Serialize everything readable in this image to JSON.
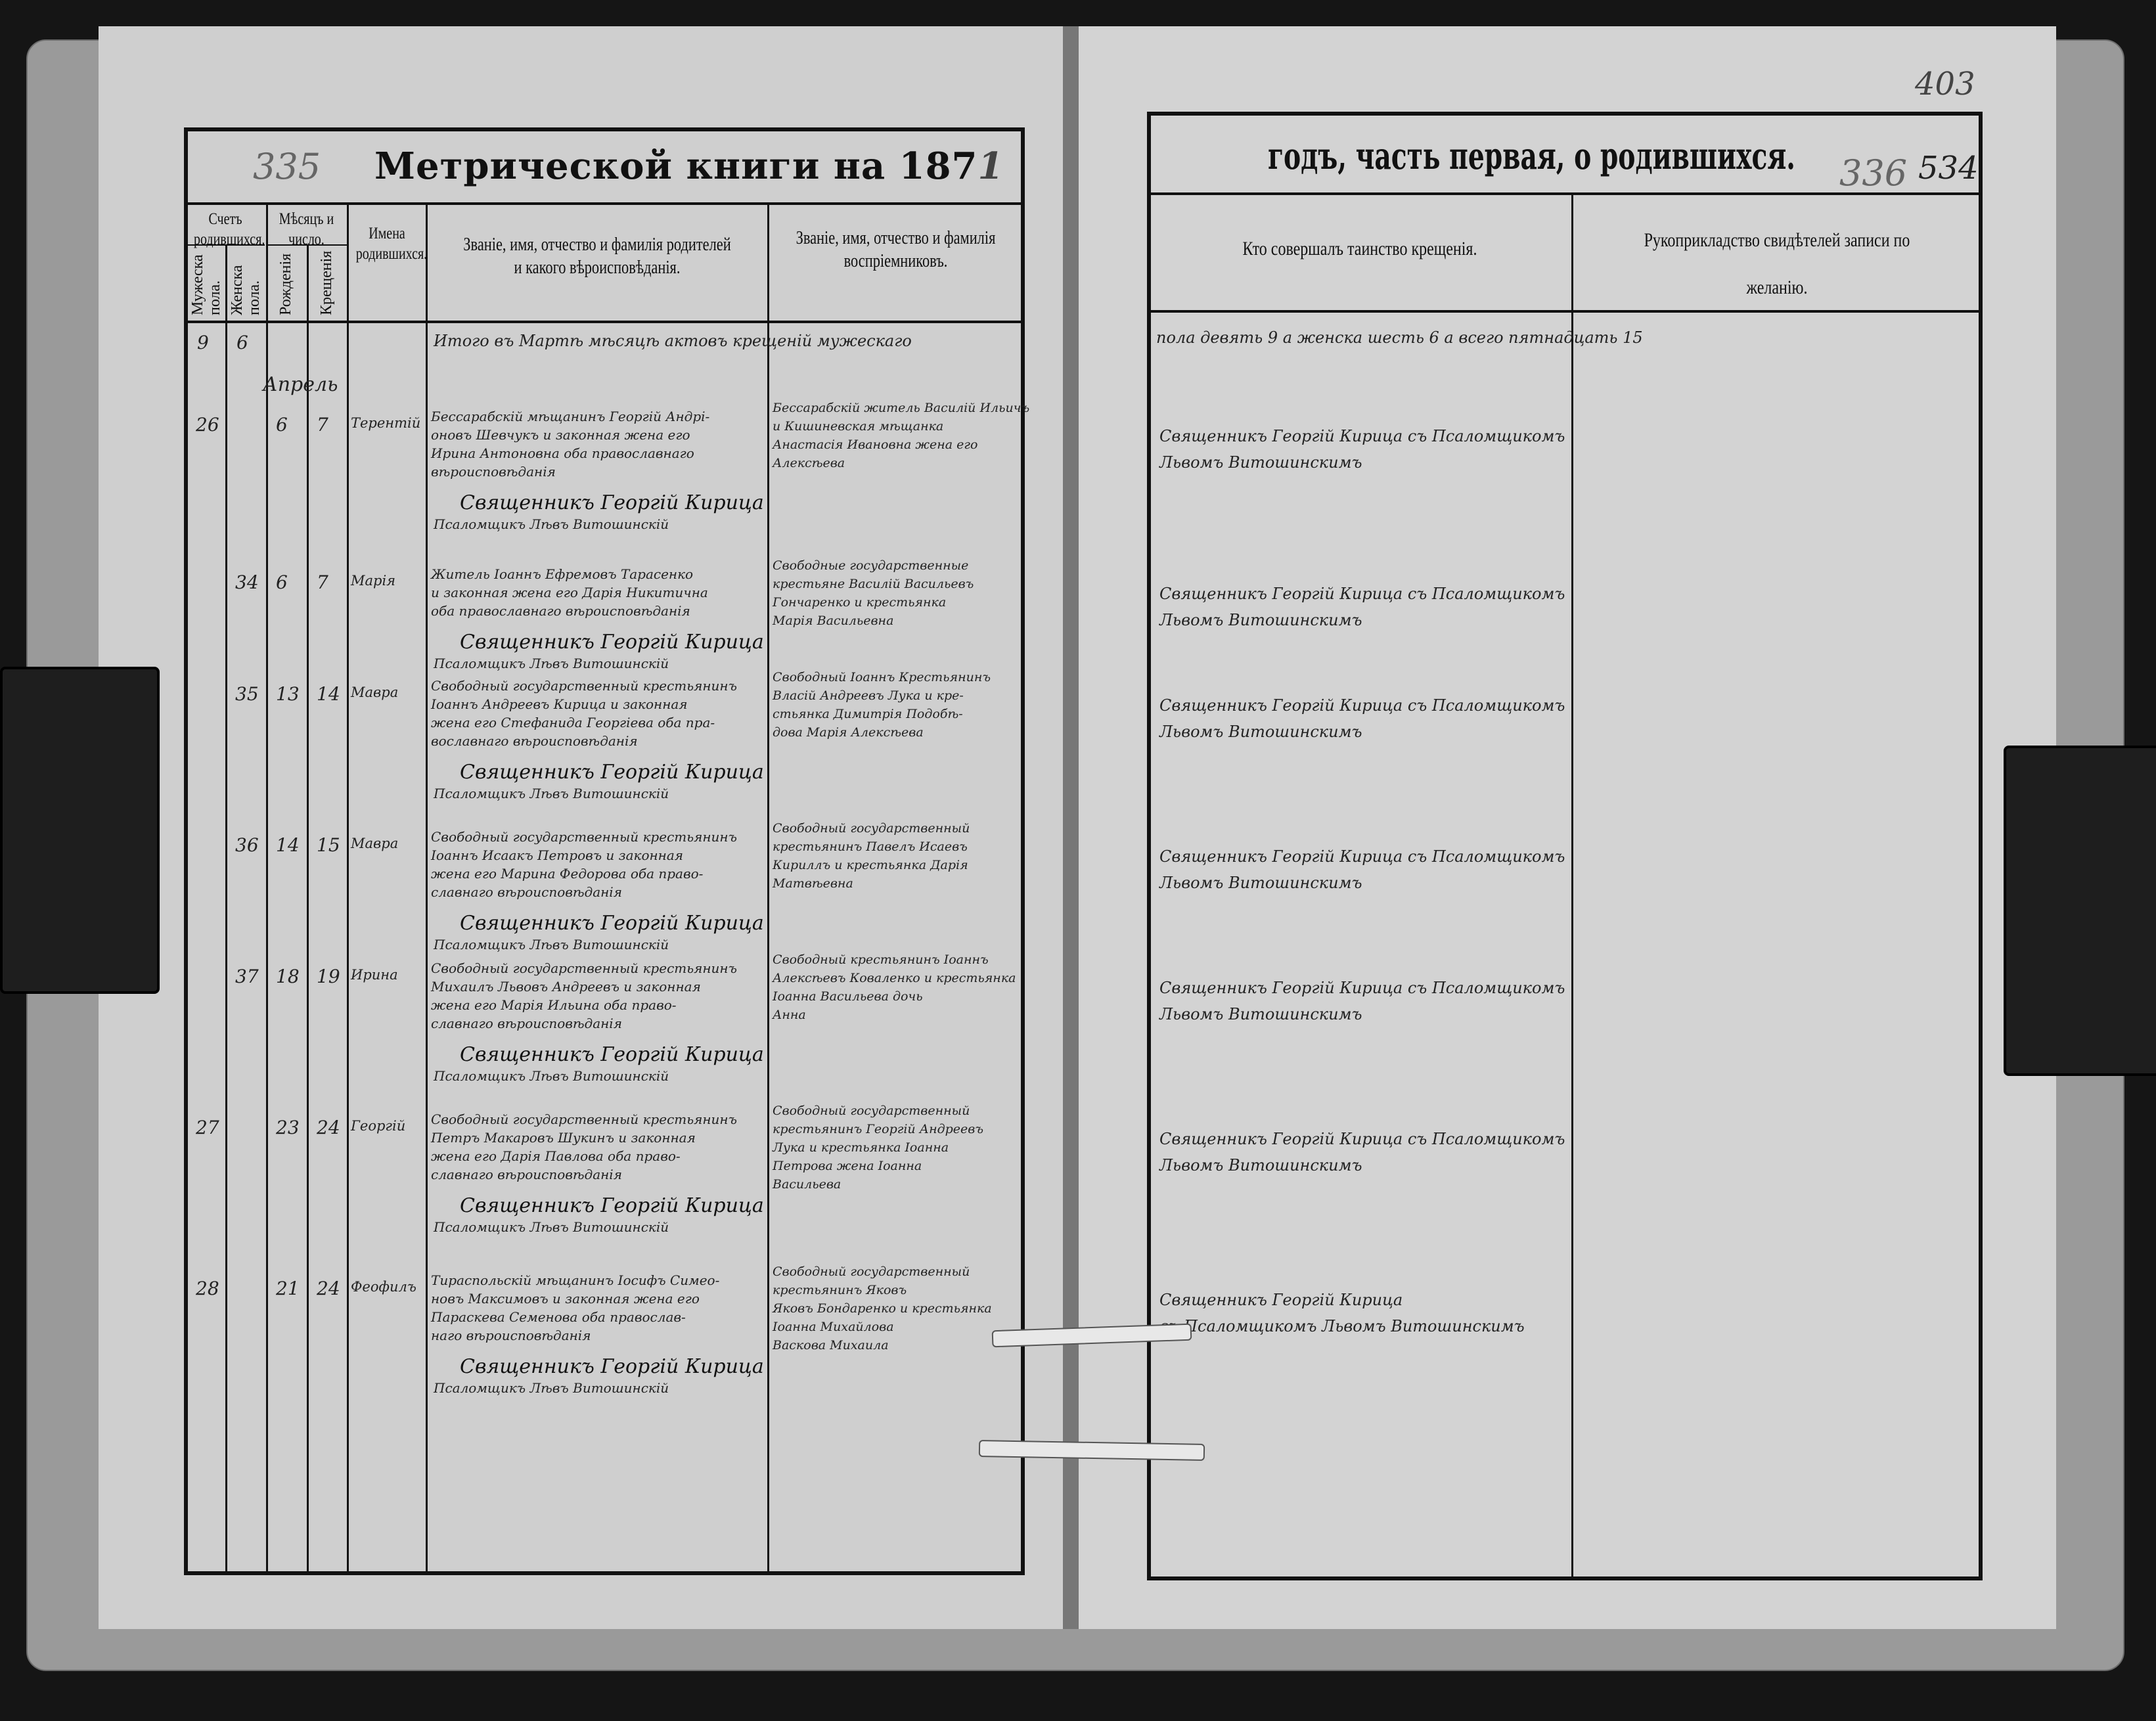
{
  "left_page": {
    "title": "Метрической книги на 187",
    "title_year_handwritten": "1",
    "page_number_pencil": "335",
    "headers": {
      "count_group": "Счетъ родившихся.",
      "count_male": "Мужеска пола.",
      "count_female": "Женска пола.",
      "date_group": "Мѣсяцъ и число.",
      "date_birth": "Рожденія",
      "date_baptism": "Крещенія",
      "names": "Имена родившихся.",
      "parents": "Званіе, имя, отчество и фамилія родителей и какого вѣроисповѣданія.",
      "godparents": "Званіе, имя, отчество и фамилія воспріемниковъ."
    },
    "carryover": {
      "male": "9",
      "female": "6",
      "note": "Итого въ Мартѣ мѣсяцѣ актовъ крещеній мужескаго"
    },
    "month": "Апрель",
    "rows": [
      {
        "male": "26",
        "female": "",
        "birth": "6",
        "baptism": "7",
        "name": "Терентій",
        "parents": [
          "Бессарабскій мѣщанинъ Георгій Андрі-",
          "оновъ Шевчукъ и законная жена его",
          "Ирина Антоновна оба православнаго",
          "вѣроисповѣданія"
        ],
        "godparents": [
          "Бессарабскій житель Василій Ильичъ",
          "и Кишиневская мѣщанка",
          "Анастасія Ивановна жена его",
          "Алексѣева"
        ]
      },
      {
        "male": "",
        "female": "34",
        "birth": "6",
        "baptism": "7",
        "name": "Марія",
        "parents": [
          "Житель Іоаннъ Ефремовъ Тарасенко",
          "и законная жена его Дарія Никитична",
          "оба православнаго вѣроисповѣданія"
        ],
        "godparents": [
          "Свободные государственные",
          "крестьяне Василій Васильевъ",
          "Гончаренко и крестьянка",
          "Марія Васильевна"
        ]
      },
      {
        "male": "",
        "female": "35",
        "birth": "13",
        "baptism": "14",
        "name": "Мавра",
        "parents": [
          "Свободный государственный крестьянинъ",
          "Іоаннъ Андреевъ Кирица и законная",
          "жена его Стефанида Георгіева оба пра-",
          "вославнаго вѣроисповѣданія"
        ],
        "godparents": [
          "Свободный Іоаннъ Крестьянинъ",
          "Власій Андреевъ Лука и кре-",
          "стьянка Димитрія Подобѣ-",
          "дова Марія Алексѣева"
        ]
      },
      {
        "male": "",
        "female": "36",
        "birth": "14",
        "baptism": "15",
        "name": "Мавра",
        "parents": [
          "Свободный государственный крестьянинъ",
          "Іоаннъ Исаакъ Петровъ и законная",
          "жена его Марина Федорова оба право-",
          "славнаго вѣроисповѣданія"
        ],
        "godparents": [
          "Свободный государственный",
          "крестьянинъ Павелъ Исаевъ",
          "Кириллъ и крестьянка Дарія",
          "Матвѣевна"
        ]
      },
      {
        "male": "",
        "female": "37",
        "birth": "18",
        "baptism": "19",
        "name": "Ирина",
        "parents": [
          "Свободный государственный крестьянинъ",
          "Михаилъ Львовъ Андреевъ и законная",
          "жена его Марія Ильина оба право-",
          "славнаго вѣроисповѣданія"
        ],
        "godparents": [
          "Свободный крестьянинъ Іоаннъ",
          "Алексѣевъ Коваленко и крестьянка",
          "Іоанна Васильева дочь",
          "Анна"
        ]
      },
      {
        "male": "27",
        "female": "",
        "birth": "23",
        "baptism": "24",
        "name": "Георгій",
        "parents": [
          "Свободный государственный крестьянинъ",
          "Петръ Макаровъ Шукинъ и законная",
          "жена его Дарія Павлова оба право-",
          "славнаго вѣроисповѣданія"
        ],
        "godparents": [
          "Свободный государственный",
          "крестьянинъ Георгій Андреевъ",
          "Лука и крестьянка Іоанна",
          "Петрова жена Іоанна",
          "Васильева"
        ]
      },
      {
        "male": "28",
        "female": "",
        "birth": "21",
        "baptism": "24",
        "name": "Феофилъ",
        "parents": [
          "Тираспольскій мѣщанинъ Іосифъ Симео-",
          "новъ Максимовъ и законная жена его",
          "Параскева Семенова оба православ-",
          "наго вѣроисповѣданія"
        ],
        "godparents": [
          "Свободный государственный",
          "крестьянинъ Яковъ",
          "Яковъ Бондаренко и крестьянка",
          "Іоанна Михайлова",
          "Васкова Михаила"
        ]
      }
    ],
    "signature_priest": "Священникъ Георгій Кирица",
    "signature_clerk": "Псаломщикъ Лѣвъ Витошинскій"
  },
  "right_page": {
    "title": "годъ, часть первая, о родившихся.",
    "page_number_pencil": "336",
    "page_number_ink": "534",
    "corner_number": "403",
    "headers": {
      "officiant": "Кто совершалъ таинство крещенія.",
      "witnesses": "Рукоприкладство свидѣтелей записи по желанію."
    },
    "carryover_note": "пола девять 9 а женска шесть 6 а всего пятнадцать 15",
    "rows": [
      "Священникъ Георгій Кирица съ Псаломщикомъ",
      "Священникъ Георгій Кирица съ Псаломщикомъ",
      "Священникъ Георгій Кирица съ Псаломщикомъ",
      "Священникъ Георгій Кирица съ Псаломщикомъ",
      "Священникъ Георгій Кирица съ Псаломщикомъ",
      "Священникъ Георгій Кирица съ Псаломщикомъ",
      "Священникъ Георгій Кирица"
    ],
    "rows_line2": [
      "Львомъ Витошинскимъ",
      "Львомъ Витошинскимъ",
      "Львомъ Витошинскимъ",
      "Львомъ Витошинскимъ",
      "Львомъ Витошинскимъ",
      "Львомъ Витошинскимъ",
      "съ Псаломщикомъ Львомъ Витошинскимъ"
    ]
  }
}
